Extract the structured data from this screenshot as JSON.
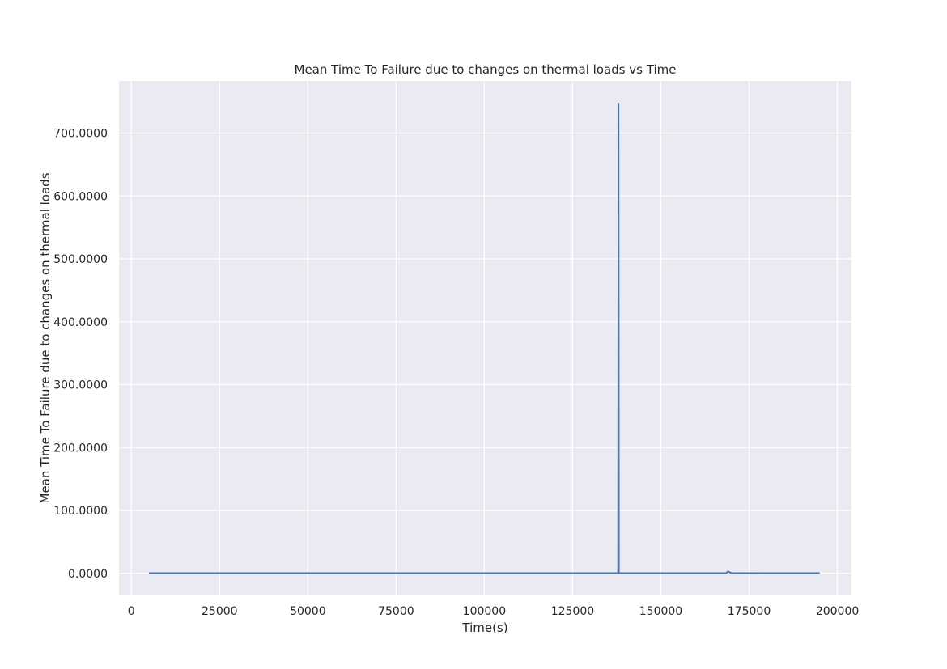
{
  "chart_data": {
    "type": "line",
    "title": "Mean Time To Failure due to changes on thermal loads vs Time",
    "xlabel": "Time(s)",
    "ylabel": "Mean Time To Failure due to changes on thermal loads",
    "xlim": [
      -3500,
      204000
    ],
    "ylim": [
      -35,
      783
    ],
    "x_ticks": [
      0,
      25000,
      50000,
      75000,
      100000,
      125000,
      150000,
      175000,
      200000
    ],
    "x_tick_labels": [
      "0",
      "25000",
      "50000",
      "75000",
      "100000",
      "125000",
      "150000",
      "175000",
      "200000"
    ],
    "y_ticks": [
      0,
      100,
      200,
      300,
      400,
      500,
      600,
      700
    ],
    "y_tick_labels": [
      "0.0000",
      "100.0000",
      "200.0000",
      "300.0000",
      "400.0000",
      "500.0000",
      "600.0000",
      "700.0000"
    ],
    "grid": true,
    "series": [
      {
        "color": "#4c72b0",
        "x": [
          5000,
          20000,
          40000,
          60000,
          80000,
          100000,
          120000,
          137900,
          138000,
          138100,
          150000,
          168500,
          169000,
          170000,
          180000,
          195000
        ],
        "y": [
          0.3,
          0.3,
          0.3,
          0.3,
          0.3,
          0.3,
          0.3,
          0.3,
          747,
          0.3,
          0.3,
          0.3,
          3,
          0.5,
          0.3,
          0.3
        ]
      }
    ]
  },
  "colors": {
    "plot_background": "#eaeaf2",
    "grid": "#ffffff",
    "line": "#4c72b0"
  }
}
